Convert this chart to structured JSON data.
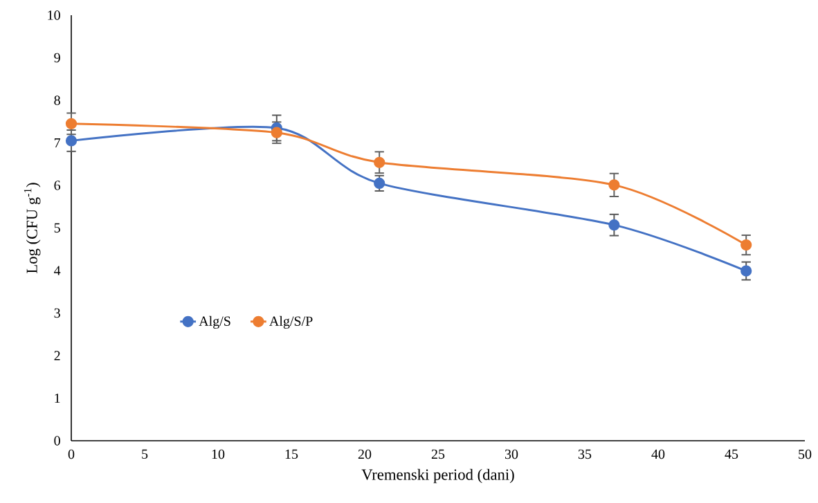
{
  "chart_data": {
    "type": "line",
    "xlabel": "Vremenski period (dani)",
    "ylabel": "Log (CFU g$^{-1}$)",
    "x": [
      0,
      14,
      21,
      37,
      46
    ],
    "series": [
      {
        "name": "Alg/S",
        "color": "#4472c4",
        "values": [
          7.05,
          7.35,
          6.05,
          5.07,
          3.99
        ],
        "errors": [
          0.25,
          0.3,
          0.18,
          0.25,
          0.21
        ]
      },
      {
        "name": "Alg/S/P",
        "color": "#ed7d31",
        "values": [
          7.45,
          7.24,
          6.54,
          6.01,
          4.6
        ],
        "errors": [
          0.25,
          0.25,
          0.25,
          0.27,
          0.23
        ]
      }
    ],
    "xlim": [
      0,
      50
    ],
    "xticks": [
      0,
      5,
      10,
      15,
      20,
      25,
      30,
      35,
      40,
      45,
      50
    ],
    "ylim": [
      0,
      10
    ],
    "yticks": [
      0,
      1,
      2,
      3,
      4,
      5,
      6,
      7,
      8,
      9,
      10
    ],
    "grid": false,
    "legend": "left",
    "marker": "circle",
    "line_style": "solid"
  }
}
